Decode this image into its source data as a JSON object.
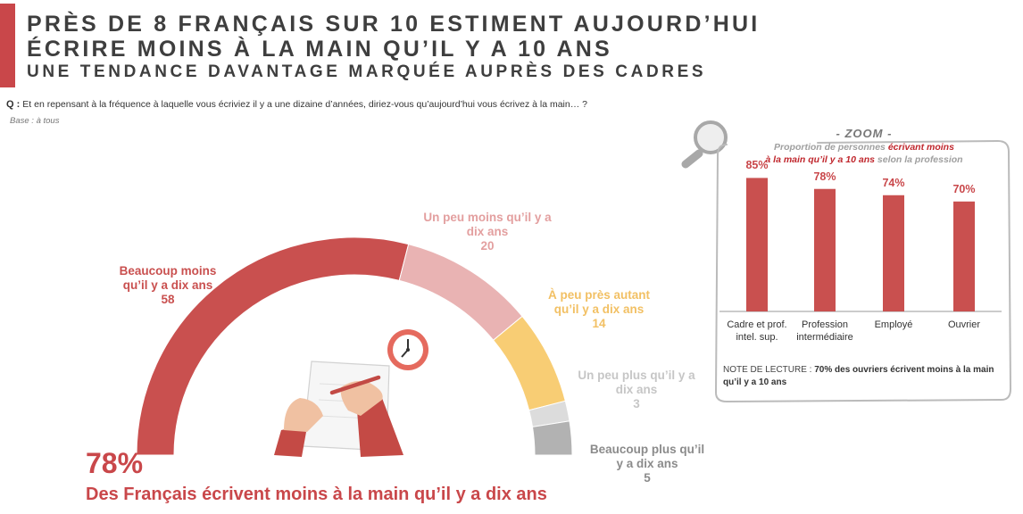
{
  "header": {
    "title_line1": "PRÈS DE 8 FRANÇAIS SUR 10 ESTIMENT AUJOURD’HUI",
    "title_line2": "ÉCRIRE MOINS À LA MAIN QU’IL Y A 10 ANS",
    "subtitle": "UNE TENDANCE DAVANTAGE MARQUÉE AUPRÈS DES CADRES",
    "question_prefix": "Q :",
    "question": "Et en repensant à la fréquence à laquelle vous écriviez il y a une dizaine d’années, diriez-vous qu’aujourd’hui vous écrivez à la main… ?",
    "base": "Base : à tous"
  },
  "colors": {
    "accent": "#c9474a",
    "seg_much_less": "#c9504f",
    "seg_bit_less": "#e9b3b3",
    "seg_same": "#f8cd74",
    "seg_bit_more": "#dcdcdc",
    "seg_much_more": "#b2b2b2",
    "zoom_bar": "#c9504f"
  },
  "chart_data": [
    {
      "type": "pie",
      "style": "half-donut",
      "categories": [
        "Beaucoup moins qu’il y a dix ans",
        "Un peu moins qu’il y a dix ans",
        "À peu près autant qu’il y a dix ans",
        "Un peu plus qu’il y a dix ans",
        "Beaucoup plus qu’il y a dix ans"
      ],
      "values": [
        58,
        20,
        14,
        3,
        5
      ],
      "labels": [
        {
          "line1": "Beaucoup moins",
          "line2": "qu’il y a dix ans",
          "value": "58"
        },
        {
          "line1": "Un peu moins qu’il y a",
          "line2": "dix ans",
          "value": "20"
        },
        {
          "line1": "À peu près autant",
          "line2": "qu’il y a dix ans",
          "value": "14"
        },
        {
          "line1": "Un peu plus qu’il y a",
          "line2": "dix ans",
          "value": "3"
        },
        {
          "line1": "Beaucoup plus qu’il",
          "line2": "y a dix ans",
          "value": "5"
        }
      ],
      "summary_value": "78%",
      "summary_text": "Des Français écrivent moins à la main qu’il y a dix ans"
    },
    {
      "type": "bar",
      "zoom_title": "- ZOOM -",
      "subtitle_a": "Proportion de personnes ",
      "subtitle_b": "écrivant moins",
      "subtitle_c": "à la main qu’il y a 10 ans",
      "subtitle_d": " selon la profession",
      "categories": [
        {
          "line1": "Cadre et prof.",
          "line2": "intel. sup."
        },
        {
          "line1": "Profession",
          "line2": "intermédiaire"
        },
        {
          "line1": "Employé",
          "line2": ""
        },
        {
          "line1": "Ouvrier",
          "line2": ""
        }
      ],
      "values": [
        85,
        78,
        74,
        70
      ],
      "value_labels": [
        "85%",
        "78%",
        "74%",
        "70%"
      ],
      "ylim": [
        0,
        100
      ],
      "note_prefix": "NOTE DE LECTURE :",
      "note_text": "70% des ouvriers écrivent moins à la main qu’il y a 10 ans"
    }
  ],
  "illustration": {
    "clock": "clock-icon",
    "hands": "hands-writing-illustration",
    "magnifier": "magnifier-icon"
  }
}
